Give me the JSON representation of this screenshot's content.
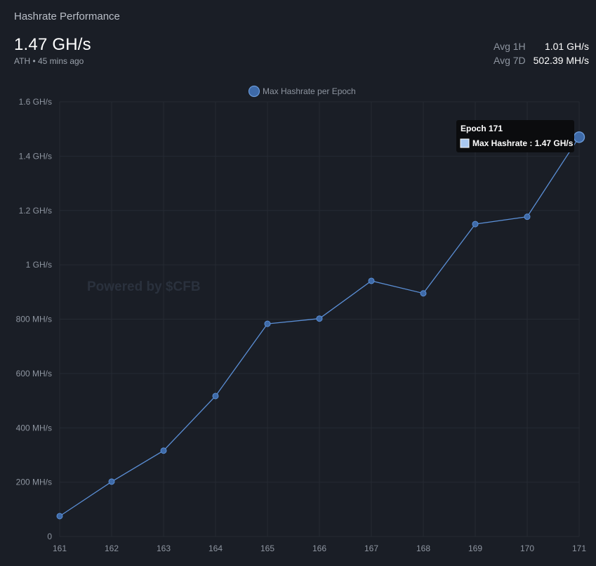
{
  "header": {
    "title": "Hashrate Performance",
    "value": "1.47 GH/s",
    "ath_label": "ATH • 45 mins ago"
  },
  "stats": [
    {
      "label": "Avg 1H",
      "value": "1.01 GH/s"
    },
    {
      "label": "Avg 7D",
      "value": "502.39 MH/s"
    }
  ],
  "watermark": "Powered by $CFB",
  "tooltip": {
    "title": "Epoch 171",
    "body": "Max Hashrate : 1.47 GH/s"
  },
  "colors": {
    "line": "#5b8fd6",
    "point_fill": "#3e6aa8",
    "background": "#1a1e26",
    "grid": "#252a33"
  },
  "chart_data": {
    "type": "line",
    "legend_position": "top-center",
    "grid": true,
    "x": [
      "161",
      "162",
      "163",
      "164",
      "165",
      "166",
      "167",
      "168",
      "169",
      "170",
      "171"
    ],
    "series": [
      {
        "name": "Max Hashrate per Epoch",
        "unit": "MH/s",
        "values": [
          75,
          202,
          316,
          517,
          783,
          802,
          941,
          895,
          1150,
          1177,
          1470
        ]
      }
    ],
    "ylim": [
      0,
      1600
    ],
    "y_ticks": [
      {
        "value": 0,
        "label": "0"
      },
      {
        "value": 200,
        "label": "200 MH/s"
      },
      {
        "value": 400,
        "label": "400 MH/s"
      },
      {
        "value": 600,
        "label": "600 MH/s"
      },
      {
        "value": 800,
        "label": "800 MH/s"
      },
      {
        "value": 1000,
        "label": "1 GH/s"
      },
      {
        "value": 1200,
        "label": "1.2 GH/s"
      },
      {
        "value": 1400,
        "label": "1.4 GH/s"
      },
      {
        "value": 1600,
        "label": "1.6 GH/s"
      }
    ]
  }
}
